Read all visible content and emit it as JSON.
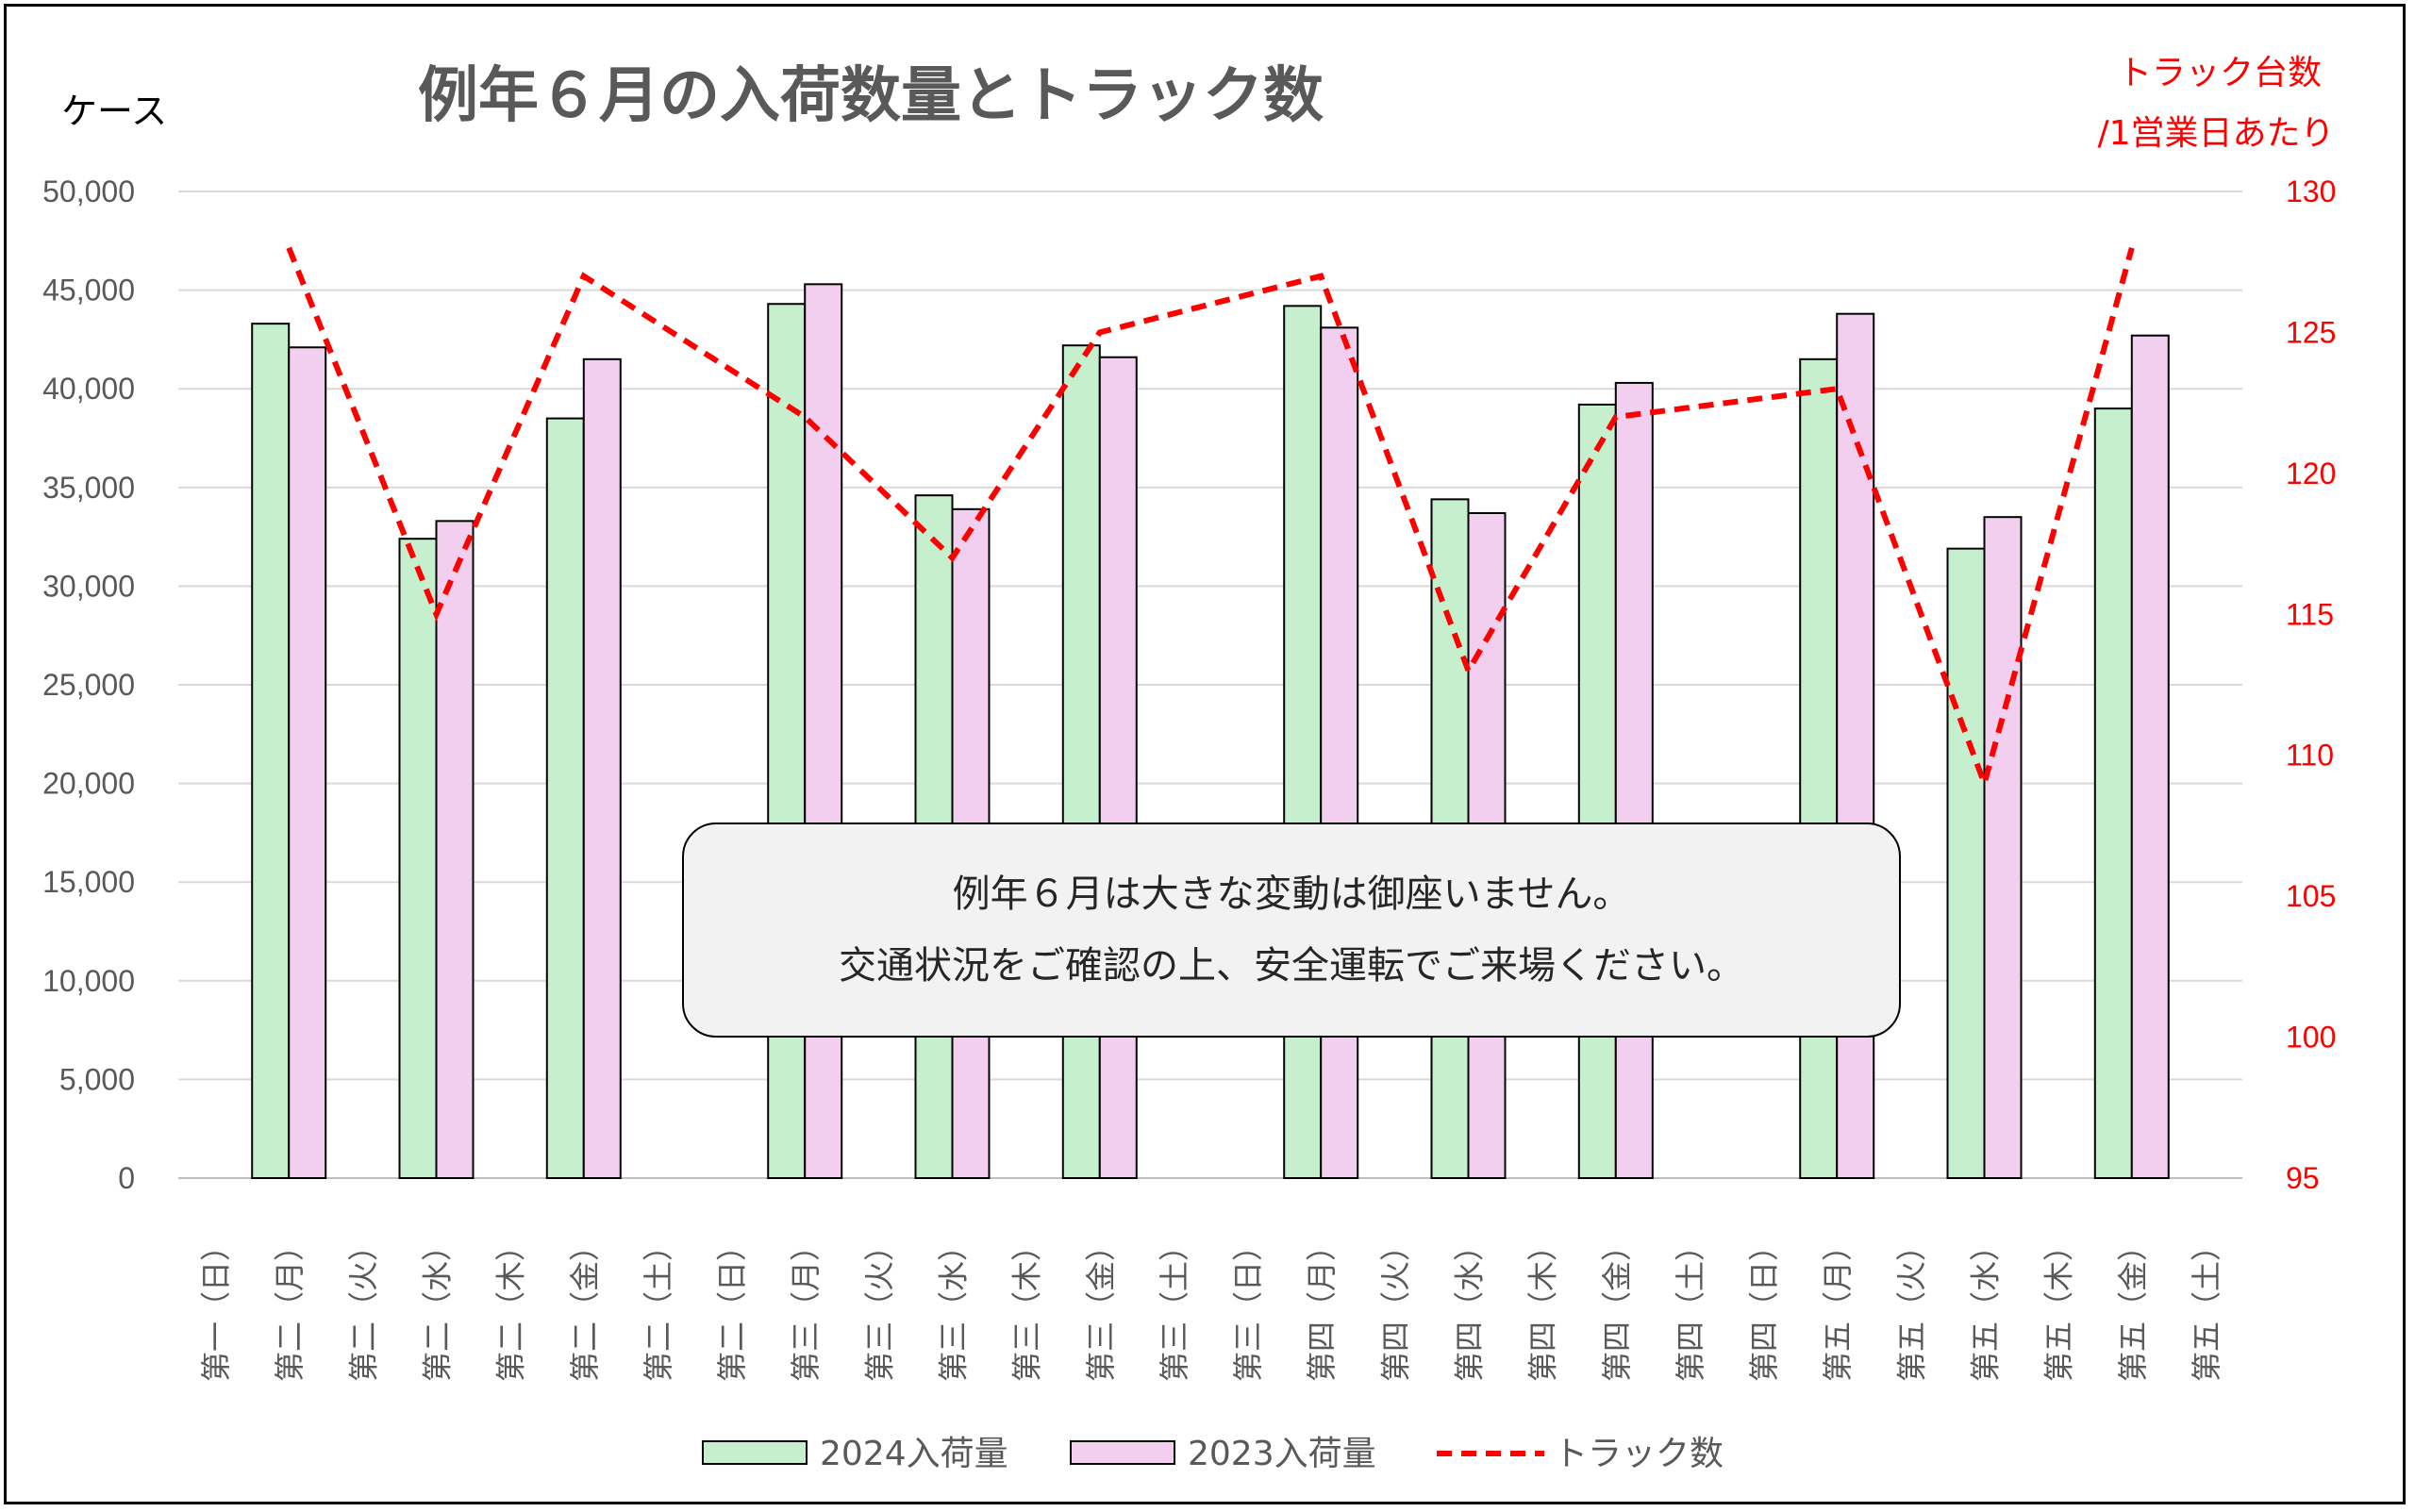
{
  "chart_data": {
    "type": "bar",
    "title": "例年６月の入荷数量とトラック数",
    "ylabel": "ケース",
    "y2label_line1": "トラック台数",
    "y2label_line2": "/1営業日あたり",
    "ylim": [
      0,
      50000
    ],
    "yticks": [
      "0",
      "5,000",
      "10,000",
      "15,000",
      "20,000",
      "25,000",
      "30,000",
      "35,000",
      "40,000",
      "45,000",
      "50,000"
    ],
    "y2lim": [
      95,
      130
    ],
    "y2ticks": [
      "95",
      "100",
      "105",
      "110",
      "115",
      "120",
      "125",
      "130"
    ],
    "categories": [
      "第一（日）",
      "第二（月）",
      "第二（火）",
      "第二（水）",
      "第二（木）",
      "第二（金）",
      "第二（土）",
      "第二（日）",
      "第三（月）",
      "第三（火）",
      "第三（水）",
      "第三（木）",
      "第三（金）",
      "第三（土）",
      "第三（日）",
      "第四（月）",
      "第四（火）",
      "第四（水）",
      "第四（木）",
      "第四（金）",
      "第四（土）",
      "第四（日）",
      "第五（月）",
      "第五（火）",
      "第五（水）",
      "第五（木）",
      "第五（金）",
      "第五（土）"
    ],
    "series": [
      {
        "name": "2024入荷量",
        "type": "bar",
        "color": "#c6efce",
        "values": [
          0,
          43300,
          0,
          32400,
          0,
          38500,
          0,
          0,
          44300,
          0,
          34600,
          0,
          42200,
          0,
          0,
          44200,
          0,
          34400,
          0,
          39200,
          0,
          0,
          41500,
          0,
          31900,
          0,
          39000,
          0
        ]
      },
      {
        "name": "2023入荷量",
        "type": "bar",
        "color": "#f2cfee",
        "values": [
          0,
          42100,
          0,
          33300,
          0,
          41500,
          0,
          0,
          45300,
          0,
          33900,
          0,
          41600,
          0,
          0,
          43100,
          0,
          33700,
          0,
          40300,
          0,
          0,
          43800,
          0,
          33500,
          0,
          42700,
          0
        ]
      },
      {
        "name": "トラック数",
        "type": "line",
        "axis": "right",
        "color": "#ff0000",
        "values": [
          null,
          128,
          null,
          115,
          null,
          127,
          null,
          null,
          122,
          null,
          117,
          null,
          125,
          null,
          null,
          127,
          null,
          113,
          null,
          122,
          null,
          null,
          123,
          null,
          109,
          null,
          128,
          null
        ]
      }
    ],
    "legend_position": "bottom",
    "grid": true
  },
  "annotation": {
    "line1": "例年６月は大きな変動は御座いません。",
    "line2": "交通状況をご確認の上、安全運転でご来場ください。"
  }
}
